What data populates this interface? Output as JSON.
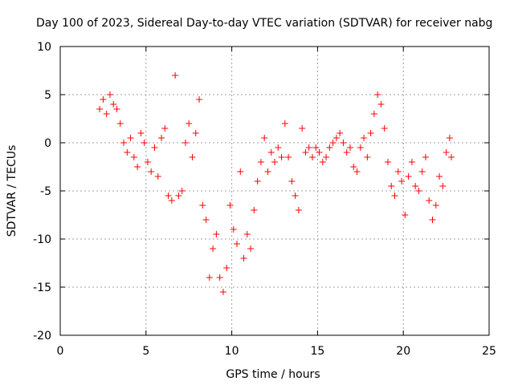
{
  "chart_data": {
    "type": "scatter",
    "title": "Day 100 of 2023, Sidereal Day-to-day VTEC variation (SDTVAR) for receiver nabg",
    "xlabel": "GPS time / hours",
    "ylabel": "SDTVAR / TECUs",
    "xlim": [
      0,
      25
    ],
    "ylim": [
      -20,
      10
    ],
    "xticks": [
      0,
      5,
      10,
      15,
      20,
      25
    ],
    "yticks": [
      -20,
      -15,
      -10,
      -5,
      0,
      5,
      10
    ],
    "grid": true,
    "marker": "+",
    "marker_color": "#ff0000",
    "series": [
      {
        "name": "SDTVAR",
        "x": [
          2.3,
          2.5,
          2.7,
          2.9,
          3.1,
          3.3,
          3.5,
          3.7,
          3.9,
          4.1,
          4.3,
          4.5,
          4.7,
          4.9,
          5.1,
          5.3,
          5.5,
          5.7,
          5.9,
          6.1,
          6.3,
          6.5,
          6.7,
          6.9,
          7.1,
          7.3,
          7.5,
          7.7,
          7.9,
          8.1,
          8.3,
          8.5,
          8.7,
          8.9,
          9.1,
          9.3,
          9.5,
          9.7,
          9.9,
          10.1,
          10.3,
          10.5,
          10.7,
          10.9,
          11.1,
          11.3,
          11.5,
          11.7,
          11.9,
          12.1,
          12.3,
          12.5,
          12.7,
          12.9,
          13.1,
          13.3,
          13.5,
          13.7,
          13.9,
          14.1,
          14.3,
          14.5,
          14.7,
          14.9,
          15.1,
          15.3,
          15.5,
          15.7,
          15.9,
          16.1,
          16.3,
          16.5,
          16.7,
          16.9,
          17.1,
          17.3,
          17.5,
          17.7,
          17.9,
          18.1,
          18.3,
          18.5,
          18.7,
          18.9,
          19.1,
          19.3,
          19.5,
          19.7,
          19.9,
          20.1,
          20.3,
          20.5,
          20.7,
          20.9,
          21.1,
          21.3,
          21.5,
          21.7,
          21.9,
          22.1,
          22.3,
          22.5,
          22.7,
          22.8
        ],
        "y": [
          3.5,
          4.5,
          3.0,
          5.0,
          4.0,
          3.5,
          2.0,
          0.0,
          -1.0,
          0.5,
          -1.5,
          -2.5,
          1.0,
          0.0,
          -2.0,
          -3.0,
          -0.5,
          -3.5,
          0.5,
          1.5,
          -5.5,
          -6.0,
          7.0,
          -5.5,
          -5.0,
          0.0,
          2.0,
          -1.5,
          1.0,
          4.5,
          -6.5,
          -8.0,
          -14.0,
          -11.0,
          -9.5,
          -14.0,
          -15.5,
          -13.0,
          -6.5,
          -9.0,
          -10.5,
          -3.0,
          -12.0,
          -9.5,
          -11.0,
          -7.0,
          -4.0,
          -2.0,
          0.5,
          -3.0,
          -1.0,
          -2.0,
          -0.5,
          -1.5,
          2.0,
          -1.5,
          -4.0,
          -5.5,
          -7.0,
          1.5,
          -1.0,
          -0.5,
          -1.5,
          -0.5,
          -1.0,
          -2.0,
          -1.5,
          -0.5,
          0.0,
          0.5,
          1.0,
          0.0,
          -1.0,
          -0.5,
          -2.5,
          -3.0,
          -0.5,
          0.5,
          -1.5,
          1.0,
          3.0,
          5.0,
          4.0,
          1.5,
          -2.0,
          -4.5,
          -5.5,
          -3.0,
          -4.0,
          -7.5,
          -3.5,
          -2.0,
          -4.5,
          -5.0,
          -3.0,
          -1.5,
          -6.0,
          -8.0,
          -6.5,
          -3.5,
          -4.5,
          -1.0,
          0.5,
          -1.5
        ]
      }
    ]
  }
}
